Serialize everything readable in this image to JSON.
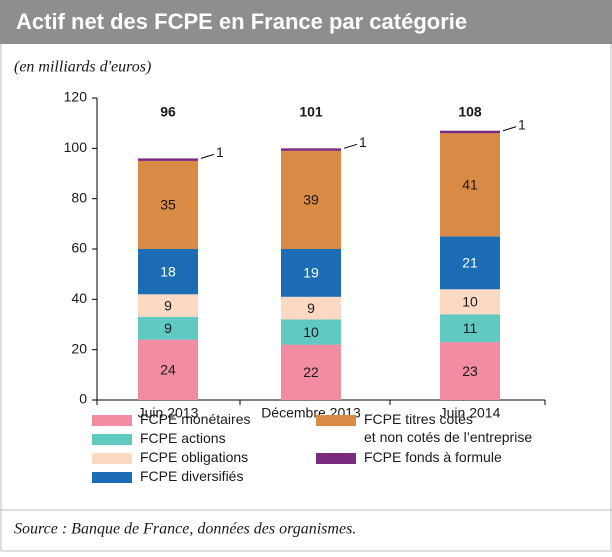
{
  "chart_data": {
    "type": "stacked-bar",
    "title": "Actif net des FCPE en France par catégorie",
    "subtitle": "(en milliards d'euros)",
    "source": "Source : Banque de France, données des organismes.",
    "categories": [
      "Juin 2013",
      "Décembre 2013",
      "Juin 2014"
    ],
    "totals": [
      96,
      101,
      108
    ],
    "series": [
      {
        "name": "FCPE monétaires",
        "color": "#f18ca2",
        "values": [
          24,
          22,
          23
        ]
      },
      {
        "name": "FCPE actions",
        "color": "#5fc9c2",
        "values": [
          9,
          10,
          11
        ]
      },
      {
        "name": "FCPE obligations",
        "color": "#fcd9c2",
        "values": [
          9,
          9,
          10
        ]
      },
      {
        "name": "FCPE diversifiés",
        "color": "#1b6cb4",
        "values": [
          18,
          19,
          21
        ]
      },
      {
        "name": "FCPE titres cotés\net non cotés de l’entreprise",
        "color": "#d98a44",
        "values": [
          35,
          39,
          41
        ]
      },
      {
        "name": "FCPE fonds à formule",
        "color": "#7a2b80",
        "values": [
          1,
          1,
          1
        ]
      }
    ],
    "ylim": [
      0,
      120
    ],
    "yticks": [
      0,
      20,
      40,
      60,
      80,
      100,
      120
    ]
  }
}
